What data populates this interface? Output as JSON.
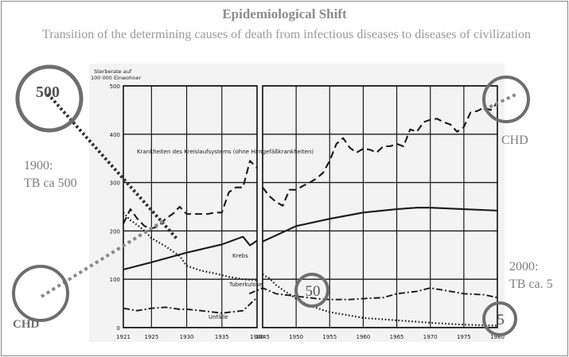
{
  "title": "Epidemiological Shift",
  "subtitle": "Transition of the determining causes of death from infectious diseases to diseases of civilization",
  "annotations": {
    "left_note_line1": "1900:",
    "left_note_line2": "TB ca 500",
    "right_note_line1": "2000:",
    "right_note_line2": "TB ca. 5",
    "chd_top_right": "CHD",
    "chd_bottom_left": "CHD",
    "circle_500": "500",
    "circle_50": "50",
    "circle_5": "5"
  },
  "colors": {
    "annotation_gray": "#7d7d7d",
    "circle_gray": "#6e6e6e",
    "plot_ink": "#1a1a1a"
  },
  "chart_data": {
    "type": "line",
    "ylabel_line1": "Sterberate auf",
    "ylabel_line2": "100 000 Einwohner",
    "ylim": [
      0,
      500
    ],
    "y_ticks": [
      0,
      100,
      200,
      300,
      400,
      500
    ],
    "y_tick_labels": [
      "0",
      "100",
      "200",
      "300",
      "400",
      "500"
    ],
    "x_ticks": [
      1921,
      1925,
      1930,
      1935,
      1940,
      1945,
      1950,
      1955,
      1960,
      1965,
      1970,
      1975,
      1980
    ],
    "x_tick_labels": [
      "1921",
      "1925",
      "1930",
      "1935",
      "1940",
      "1945",
      "1950",
      "1955",
      "1960",
      "1965",
      "1970",
      "1975",
      "1980"
    ],
    "grid": true,
    "series": [
      {
        "name": "Krankheiten des Kreislaufsystems (ohne Hirngefäßkrankheiten)",
        "style": "dashed",
        "x": [
          1921,
          1922,
          1923,
          1924,
          1925,
          1926,
          1927,
          1928,
          1929,
          1930,
          1931,
          1932,
          1933,
          1934,
          1935,
          1936,
          1937,
          1938,
          1939,
          1940,
          1945,
          1946,
          1947,
          1948,
          1949,
          1950,
          1951,
          1952,
          1953,
          1954,
          1955,
          1956,
          1957,
          1958,
          1959,
          1960,
          1961,
          1962,
          1963,
          1964,
          1965,
          1966,
          1967,
          1968,
          1969,
          1970,
          1971,
          1972,
          1973,
          1974,
          1975,
          1976,
          1977,
          1978,
          1979,
          1980
        ],
        "y": [
          215,
          245,
          225,
          210,
          205,
          210,
          225,
          235,
          250,
          235,
          235,
          235,
          235,
          238,
          238,
          280,
          290,
          290,
          345,
          330,
          290,
          272,
          260,
          252,
          285,
          285,
          293,
          300,
          308,
          320,
          345,
          380,
          392,
          372,
          362,
          370,
          368,
          362,
          375,
          375,
          380,
          375,
          410,
          405,
          425,
          430,
          432,
          425,
          420,
          405,
          415,
          445,
          448,
          455,
          450,
          465
        ]
      },
      {
        "name": "Krebs",
        "style": "solid",
        "x": [
          1921,
          1925,
          1930,
          1935,
          1938,
          1939,
          1940,
          1945,
          1950,
          1955,
          1960,
          1965,
          1968,
          1970,
          1975,
          1980
        ],
        "y": [
          120,
          135,
          155,
          172,
          188,
          170,
          180,
          178,
          210,
          225,
          238,
          245,
          248,
          248,
          245,
          242
        ]
      },
      {
        "name": "Tuberkulose",
        "style": "dotted",
        "x": [
          1921,
          1922,
          1923,
          1924,
          1925,
          1927,
          1929,
          1930,
          1932,
          1934,
          1936,
          1938,
          1940,
          1945,
          1946,
          1947,
          1948,
          1950,
          1952,
          1955,
          1958,
          1960,
          1965,
          1970,
          1975,
          1980
        ],
        "y": [
          238,
          222,
          212,
          200,
          185,
          168,
          148,
          128,
          118,
          112,
          105,
          100,
          98,
          110,
          102,
          88,
          78,
          60,
          45,
          32,
          25,
          20,
          15,
          10,
          6,
          4
        ]
      },
      {
        "name": "Unfälle",
        "style": "dash-dot",
        "x": [
          1921,
          1923,
          1925,
          1927,
          1929,
          1930,
          1932,
          1935,
          1938,
          1940,
          1943,
          1945,
          1947,
          1950,
          1953,
          1955,
          1958,
          1960,
          1963,
          1965,
          1968,
          1970,
          1973,
          1975,
          1978,
          1980
        ],
        "y": [
          40,
          35,
          40,
          42,
          38,
          38,
          35,
          30,
          35,
          62,
          70,
          82,
          70,
          65,
          60,
          58,
          58,
          60,
          62,
          70,
          75,
          82,
          75,
          70,
          68,
          62
        ]
      }
    ]
  }
}
